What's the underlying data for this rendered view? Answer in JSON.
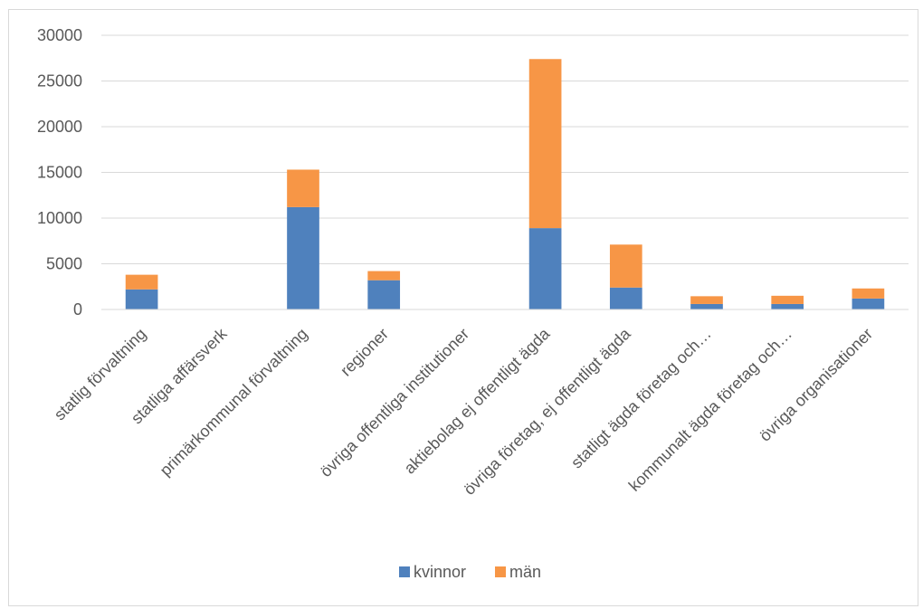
{
  "chart_data": {
    "type": "bar",
    "stacked": true,
    "categories": [
      "statlig förvaltning",
      "statliga affärsverk",
      "primärkommunal förvaltning",
      "regioner",
      "övriga offentliga institutioner",
      "aktiebolag ej offentligt ägda",
      "övriga företag, ej offentligt ägda",
      "statligt ägda företag och…",
      "kommunalt ägda företag och…",
      "övriga organisationer"
    ],
    "series": [
      {
        "name": "kvinnor",
        "color": "#4f81bd",
        "values": [
          2200,
          0,
          11200,
          3200,
          0,
          8900,
          2400,
          600,
          600,
          1200
        ]
      },
      {
        "name": "män",
        "color": "#f79646",
        "values": [
          1600,
          0,
          4100,
          1000,
          0,
          18500,
          4700,
          850,
          900,
          1100
        ]
      }
    ],
    "ylim": [
      0,
      30000
    ],
    "yticks": [
      "0",
      "5000",
      "10000",
      "15000",
      "20000",
      "25000",
      "30000"
    ],
    "title": "",
    "xlabel": "",
    "ylabel": "",
    "grid": true,
    "legend_position": "bottom"
  }
}
